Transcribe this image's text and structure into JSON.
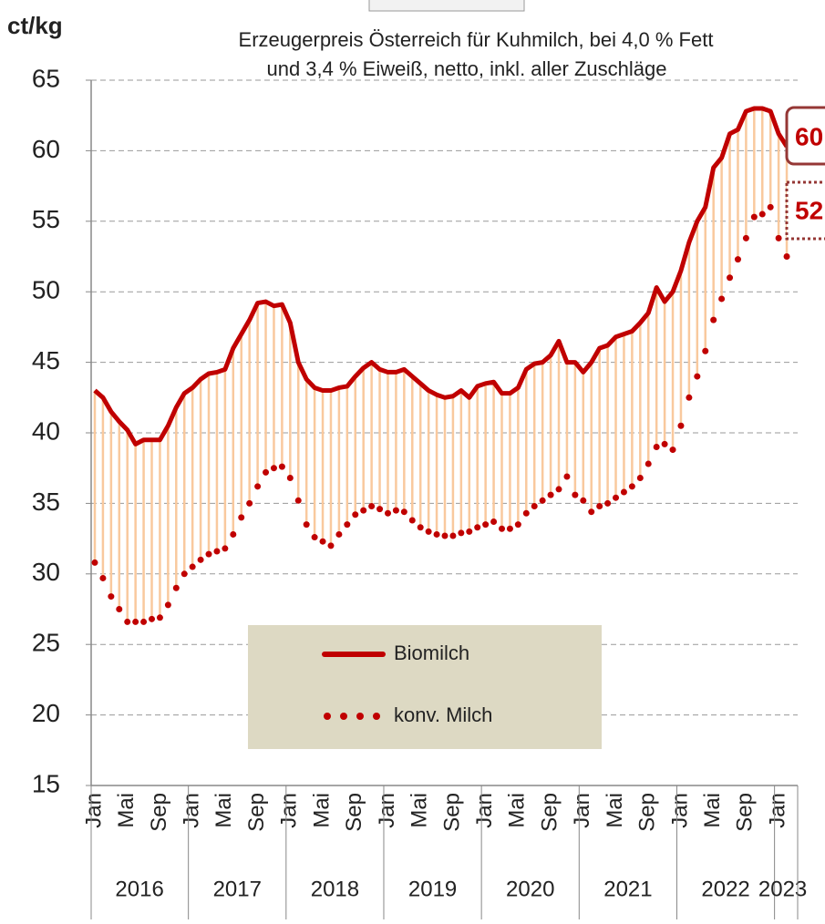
{
  "chart_data": {
    "type": "line",
    "title": "Erzeugerpreis Österreich für Kuhmilch, bei 4,0 % Fett",
    "subtitle": "und 3,4 % Eiweiß, netto, inkl. aller Zuschläge",
    "ylabel": "ct/kg",
    "categories": [
      "Jan",
      null,
      null,
      null,
      "Mai",
      null,
      null,
      null,
      "Sep",
      null,
      null,
      null,
      "Jan",
      null,
      null,
      null,
      "Mai",
      null,
      null,
      null,
      "Sep",
      null,
      null,
      null,
      "Jan",
      null,
      null,
      null,
      "Mai",
      null,
      null,
      null,
      "Sep",
      null,
      null,
      null,
      "Jan",
      null,
      null,
      null,
      "Mai",
      null,
      null,
      null,
      "Sep",
      null,
      null,
      null,
      "Jan",
      null,
      null,
      null,
      "Mai",
      null,
      null,
      null,
      "Sep",
      null,
      null,
      null,
      "Jan",
      null,
      null,
      null,
      "Mai",
      null,
      null,
      null,
      "Sep",
      null,
      null,
      null,
      "Jan",
      null,
      null,
      null,
      "Mai",
      null,
      null,
      null,
      "Sep",
      null,
      null,
      null,
      "Jan",
      null
    ],
    "years": [
      "2016",
      "2017",
      "2018",
      "2019",
      "2020",
      "2021",
      "2022",
      "2023"
    ],
    "series": [
      {
        "name": "Biomilch",
        "color": "#c00000",
        "values": [
          43.0,
          42.5,
          41.5,
          40.8,
          40.2,
          39.2,
          39.5,
          39.5,
          39.5,
          40.5,
          41.8,
          42.8,
          43.2,
          43.8,
          44.2,
          44.3,
          44.5,
          46.0,
          47.0,
          48.0,
          49.2,
          49.3,
          49.0,
          49.1,
          47.8,
          45.0,
          43.8,
          43.2,
          43.0,
          43.0,
          43.2,
          43.3,
          44.0,
          44.6,
          45.0,
          44.5,
          44.3,
          44.3,
          44.5,
          44.0,
          43.5,
          43.0,
          42.7,
          42.5,
          42.6,
          43.0,
          42.5,
          43.3,
          43.5,
          43.6,
          42.8,
          42.8,
          43.2,
          44.5,
          44.9,
          45.0,
          45.5,
          46.5,
          45.0,
          45.0,
          44.3,
          45.0,
          46.0,
          46.2,
          46.8,
          47.0,
          47.2,
          47.8,
          48.5,
          50.3,
          49.3,
          50.0,
          51.5,
          53.5,
          55.0,
          56.0,
          58.8,
          59.5,
          61.2,
          61.5,
          62.8,
          63.0,
          63.0,
          62.8,
          61.2,
          60.3
        ]
      },
      {
        "name": "konv. Milch",
        "color": "#c00000",
        "values": [
          30.8,
          29.7,
          28.4,
          27.5,
          26.6,
          26.6,
          26.6,
          26.8,
          26.9,
          27.8,
          29.0,
          30.0,
          30.5,
          31.0,
          31.4,
          31.6,
          31.8,
          32.8,
          34.0,
          35.0,
          36.2,
          37.2,
          37.5,
          37.6,
          36.8,
          35.2,
          33.5,
          32.6,
          32.3,
          32.0,
          32.8,
          33.5,
          34.2,
          34.5,
          34.8,
          34.6,
          34.3,
          34.5,
          34.4,
          33.8,
          33.3,
          33.0,
          32.8,
          32.7,
          32.7,
          32.9,
          33.0,
          33.3,
          33.5,
          33.7,
          33.2,
          33.2,
          33.5,
          34.3,
          34.8,
          35.2,
          35.6,
          36.0,
          36.9,
          35.6,
          35.2,
          34.4,
          34.8,
          35.0,
          35.4,
          35.8,
          36.2,
          36.8,
          37.8,
          39.0,
          39.2,
          38.8,
          40.5,
          42.5,
          44.0,
          45.8,
          48.0,
          49.5,
          51.0,
          52.3,
          53.8,
          55.3,
          55.5,
          56.0,
          53.8,
          52.5
        ]
      }
    ],
    "end_labels": [
      "60",
      "52"
    ],
    "spread_color": "#f9c99e",
    "legend_color": "#ddd9c3",
    "ylim": [
      15,
      65
    ],
    "yticks": [
      15,
      20,
      25,
      30,
      35,
      40,
      45,
      50,
      55,
      60,
      65
    ],
    "grid": true
  }
}
